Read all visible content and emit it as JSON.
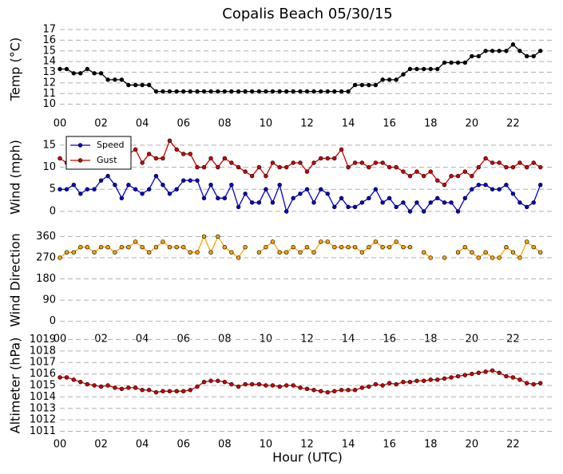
{
  "chart_data": [
    {
      "type": "line",
      "title": "Copalis Beach 05/30/15",
      "ylabel": "Temp (°C)",
      "x": [
        0,
        0.33,
        0.67,
        1,
        1.33,
        1.67,
        2,
        2.33,
        2.67,
        3,
        3.33,
        3.67,
        4,
        4.33,
        4.67,
        5,
        5.33,
        5.67,
        6,
        6.33,
        6.67,
        7,
        7.33,
        7.67,
        8,
        8.33,
        8.67,
        9,
        9.33,
        9.67,
        10,
        10.33,
        10.67,
        11,
        11.33,
        11.67,
        12,
        12.33,
        12.67,
        13,
        13.33,
        13.67,
        14,
        14.33,
        14.67,
        15,
        15.33,
        15.67,
        16,
        16.33,
        16.67,
        17,
        17.33,
        17.67,
        18,
        18.33,
        18.67,
        19,
        19.33,
        19.67,
        20,
        20.33,
        20.67,
        21,
        21.33,
        21.67,
        22,
        22.33,
        22.67,
        23,
        23.33
      ],
      "series": [
        {
          "color": "#000000",
          "values": [
            13.3,
            13.3,
            12.9,
            12.9,
            13.3,
            12.9,
            12.9,
            12.3,
            12.3,
            12.3,
            11.8,
            11.8,
            11.8,
            11.8,
            11.2,
            11.2,
            11.2,
            11.2,
            11.2,
            11.2,
            11.2,
            11.2,
            11.2,
            11.2,
            11.2,
            11.2,
            11.2,
            11.2,
            11.2,
            11.2,
            11.2,
            11.2,
            11.2,
            11.2,
            11.2,
            11.2,
            11.2,
            11.2,
            11.2,
            11.2,
            11.2,
            11.2,
            11.2,
            11.8,
            11.8,
            11.8,
            11.8,
            12.3,
            12.3,
            12.3,
            12.8,
            13.3,
            13.3,
            13.3,
            13.3,
            13.3,
            13.9,
            13.9,
            13.9,
            13.9,
            14.5,
            14.5,
            15.0,
            15.0,
            15.0,
            15.0,
            15.6,
            15.0,
            14.5,
            14.5,
            15.0
          ]
        }
      ],
      "xlim": [
        0,
        24
      ],
      "xticks": [
        {
          "value": 0,
          "label": "00"
        },
        {
          "value": 2,
          "label": "02"
        },
        {
          "value": 4,
          "label": "04"
        },
        {
          "value": 6,
          "label": "06"
        },
        {
          "value": 8,
          "label": "08"
        },
        {
          "value": 10,
          "label": "10"
        },
        {
          "value": 12,
          "label": "12"
        },
        {
          "value": 14,
          "label": "14"
        },
        {
          "value": 16,
          "label": "16"
        },
        {
          "value": 18,
          "label": "18"
        },
        {
          "value": 20,
          "label": "20"
        },
        {
          "value": 22,
          "label": "22"
        }
      ],
      "ylim": [
        9.3,
        17.3
      ],
      "yticks": [
        10,
        11,
        12,
        13,
        14,
        15,
        16,
        17
      ],
      "grid": true
    },
    {
      "type": "line",
      "ylabel": "Wind (mph)",
      "legend": "upper left",
      "x": [
        0,
        0.33,
        0.67,
        1,
        1.33,
        1.67,
        2,
        2.33,
        2.67,
        3,
        3.33,
        3.67,
        4,
        4.33,
        4.67,
        5,
        5.33,
        5.67,
        6,
        6.33,
        6.67,
        7,
        7.33,
        7.67,
        8,
        8.33,
        8.67,
        9,
        9.33,
        9.67,
        10,
        10.33,
        10.67,
        11,
        11.33,
        11.67,
        12,
        12.33,
        12.67,
        13,
        13.33,
        13.67,
        14,
        14.33,
        14.67,
        15,
        15.33,
        15.67,
        16,
        16.33,
        16.67,
        17,
        17.33,
        17.67,
        18,
        18.33,
        18.67,
        19,
        19.33,
        19.67,
        20,
        20.33,
        20.67,
        21,
        21.33,
        21.67,
        22,
        22.33,
        22.67,
        23,
        23.33
      ],
      "series": [
        {
          "name": "Speed",
          "color": "#0000cc",
          "values": [
            5,
            5,
            6,
            4,
            5,
            5,
            7,
            8,
            6,
            3,
            6,
            5,
            4,
            5,
            8,
            6,
            4,
            5,
            7,
            7,
            7,
            3,
            6,
            3,
            3,
            6,
            1,
            4,
            2,
            2,
            5,
            2,
            6,
            0,
            3,
            4,
            5,
            2,
            5,
            4,
            1,
            3,
            1,
            1,
            2,
            3,
            5,
            2,
            3,
            1,
            2,
            0,
            2,
            0,
            2,
            3,
            2,
            2,
            0,
            3,
            5,
            6,
            6,
            5,
            5,
            6,
            4,
            2,
            1,
            2,
            6
          ]
        },
        {
          "name": "Gust",
          "color": "#cc0000",
          "values": [
            12,
            11,
            12,
            13,
            13,
            12,
            12,
            14,
            13,
            14,
            13,
            14,
            11,
            13,
            12,
            12,
            16,
            14,
            13,
            13,
            10,
            10,
            12,
            10,
            12,
            11,
            10,
            9,
            8,
            10,
            8,
            11,
            10,
            10,
            11,
            11,
            9,
            11,
            12,
            12,
            12,
            14,
            10,
            11,
            11,
            10,
            11,
            11,
            10,
            10,
            9,
            8,
            9,
            8,
            9,
            7,
            6,
            8,
            8,
            9,
            8,
            10,
            12,
            11,
            11,
            10,
            10,
            11,
            10,
            11,
            10
          ]
        }
      ],
      "xlim": [
        0,
        24
      ],
      "ylim": [
        -2,
        17.5
      ],
      "yticks": [
        0,
        5,
        10,
        15
      ],
      "grid": true
    },
    {
      "type": "line",
      "ylabel": "Wind Direction",
      "x": [
        0,
        0.33,
        0.67,
        1,
        1.33,
        1.67,
        2,
        2.33,
        2.67,
        3,
        3.33,
        3.67,
        4,
        4.33,
        4.67,
        5,
        5.33,
        5.67,
        6,
        6.33,
        6.67,
        7,
        7.33,
        7.67,
        8,
        8.33,
        8.67,
        9,
        9.33,
        9.67,
        10,
        10.33,
        10.67,
        11,
        11.33,
        11.67,
        12,
        12.33,
        12.67,
        13,
        13.33,
        13.67,
        14,
        14.33,
        14.67,
        15,
        15.33,
        15.67,
        16,
        16.33,
        16.67,
        17,
        17.33,
        17.67,
        18,
        18.33,
        18.67,
        19,
        19.33,
        19.67,
        20,
        20.33,
        20.67,
        21,
        21.33,
        21.67,
        22,
        22.33,
        22.67,
        23,
        23.33
      ],
      "series": [
        {
          "color": "#ffa500",
          "values": [
            270,
            293,
            293,
            315,
            315,
            293,
            315,
            315,
            293,
            315,
            315,
            338,
            315,
            293,
            315,
            338,
            315,
            315,
            315,
            293,
            293,
            360,
            293,
            360,
            315,
            293,
            270,
            315,
            null,
            293,
            315,
            338,
            293,
            293,
            315,
            293,
            315,
            293,
            338,
            338,
            315,
            315,
            315,
            315,
            293,
            315,
            338,
            315,
            315,
            338,
            315,
            315,
            null,
            293,
            270,
            null,
            270,
            null,
            293,
            315,
            293,
            270,
            293,
            270,
            270,
            315,
            293,
            270,
            338,
            315,
            293
          ]
        }
      ],
      "xlim": [
        0,
        24
      ],
      "xticks": [
        {
          "value": 0,
          "label": "00"
        },
        {
          "value": 2,
          "label": "02"
        },
        {
          "value": 4,
          "label": "04"
        },
        {
          "value": 6,
          "label": "06"
        },
        {
          "value": 8,
          "label": "08"
        },
        {
          "value": 10,
          "label": "10"
        },
        {
          "value": 12,
          "label": "12"
        },
        {
          "value": 14,
          "label": "14"
        },
        {
          "value": 16,
          "label": "16"
        },
        {
          "value": 18,
          "label": "18"
        },
        {
          "value": 20,
          "label": "20"
        },
        {
          "value": 22,
          "label": "22"
        }
      ],
      "ylim": [
        -25,
        375
      ],
      "yticks": [
        0,
        90,
        180,
        270,
        360
      ],
      "grid": true
    },
    {
      "type": "line",
      "ylabel": "Altimeter (hPa)",
      "xlabel": "Hour (UTC)",
      "x": [
        0,
        0.33,
        0.67,
        1,
        1.33,
        1.67,
        2,
        2.33,
        2.67,
        3,
        3.33,
        3.67,
        4,
        4.33,
        4.67,
        5,
        5.33,
        5.67,
        6,
        6.33,
        6.67,
        7,
        7.33,
        7.67,
        8,
        8.33,
        8.67,
        9,
        9.33,
        9.67,
        10,
        10.33,
        10.67,
        11,
        11.33,
        11.67,
        12,
        12.33,
        12.67,
        13,
        13.33,
        13.67,
        14,
        14.33,
        14.67,
        15,
        15.33,
        15.67,
        16,
        16.33,
        16.67,
        17,
        17.33,
        17.67,
        18,
        18.33,
        18.67,
        19,
        19.33,
        19.67,
        20,
        20.33,
        20.67,
        21,
        21.33,
        21.67,
        22,
        22.33,
        22.67,
        23,
        23.33
      ],
      "series": [
        {
          "color": "#cc0000",
          "values": [
            1015.7,
            1015.7,
            1015.5,
            1015.3,
            1015.1,
            1015.0,
            1014.9,
            1015.0,
            1014.8,
            1014.7,
            1014.8,
            1014.8,
            1014.6,
            1014.6,
            1014.4,
            1014.5,
            1014.5,
            1014.5,
            1014.5,
            1014.6,
            1014.9,
            1015.3,
            1015.4,
            1015.4,
            1015.3,
            1015.1,
            1014.9,
            1015.1,
            1015.1,
            1015.1,
            1015.0,
            1015.0,
            1014.9,
            1015.0,
            1015.0,
            1014.8,
            1014.7,
            1014.6,
            1014.5,
            1014.4,
            1014.5,
            1014.6,
            1014.6,
            1014.6,
            1014.8,
            1014.9,
            1015.1,
            1015.0,
            1015.2,
            1015.1,
            1015.3,
            1015.3,
            1015.4,
            1015.4,
            1015.5,
            1015.5,
            1015.6,
            1015.7,
            1015.8,
            1015.9,
            1016.0,
            1016.1,
            1016.2,
            1016.3,
            1016.1,
            1015.8,
            1015.7,
            1015.5,
            1015.2,
            1015.1,
            1015.2
          ]
        }
      ],
      "xlim": [
        0,
        24
      ],
      "xticks": [
        {
          "value": 0,
          "label": "00"
        },
        {
          "value": 2,
          "label": "02"
        },
        {
          "value": 4,
          "label": "04"
        },
        {
          "value": 6,
          "label": "06"
        },
        {
          "value": 8,
          "label": "08"
        },
        {
          "value": 10,
          "label": "10"
        },
        {
          "value": 12,
          "label": "12"
        },
        {
          "value": 14,
          "label": "14"
        },
        {
          "value": 16,
          "label": "16"
        },
        {
          "value": 18,
          "label": "18"
        },
        {
          "value": 20,
          "label": "20"
        },
        {
          "value": 22,
          "label": "22"
        }
      ],
      "ylim": [
        1010.9,
        1019.1
      ],
      "yticks": [
        1011,
        1012,
        1013,
        1014,
        1015,
        1016,
        1017,
        1018,
        1019
      ],
      "grid": true
    }
  ]
}
